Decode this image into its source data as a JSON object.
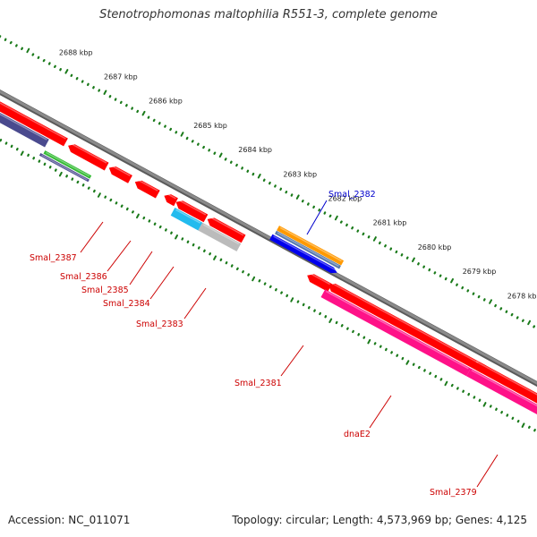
{
  "title": "Stenotrophomonas maltophilia R551-3, complete genome",
  "footer": {
    "accession": "Accession: NC_011071",
    "stats": "Topology: circular; Length: 4,573,969 bp; Genes: 4,125"
  },
  "ticks": [
    "2688 kbp",
    "2687 kbp",
    "2686 kbp",
    "2685 kbp",
    "2684 kbp",
    "2683 kbp",
    "2682 kbp",
    "2681 kbp",
    "2680 kbp",
    "2679 kbp",
    "2678 kbp"
  ],
  "genes": [
    {
      "name": "Smal_2387",
      "color": "#cc0000"
    },
    {
      "name": "Smal_2386",
      "color": "#cc0000"
    },
    {
      "name": "Smal_2385",
      "color": "#cc0000"
    },
    {
      "name": "Smal_2384",
      "color": "#cc0000"
    },
    {
      "name": "Smal_2383",
      "color": "#cc0000"
    },
    {
      "name": "Smal_2382",
      "color": "#0000cc"
    },
    {
      "name": "Smal_2381",
      "color": "#cc0000"
    },
    {
      "name": "dnaE2",
      "color": "#cc0000"
    },
    {
      "name": "Smal_2379",
      "color": "#cc0000"
    }
  ],
  "colors": {
    "tick": "#1a7a1a",
    "backbone": "#8a8a8a",
    "red_gene": "#ff0000",
    "purple_gene": "#4a4a8e",
    "green_gene": "#33bb33",
    "cyan_gene": "#22bbee",
    "grey_gene": "#bbbbbb",
    "orange_gene": "#ff9900",
    "steel_gene": "#5577aa",
    "blue_gene": "#0000ee",
    "magenta_gene": "#ff1188"
  }
}
